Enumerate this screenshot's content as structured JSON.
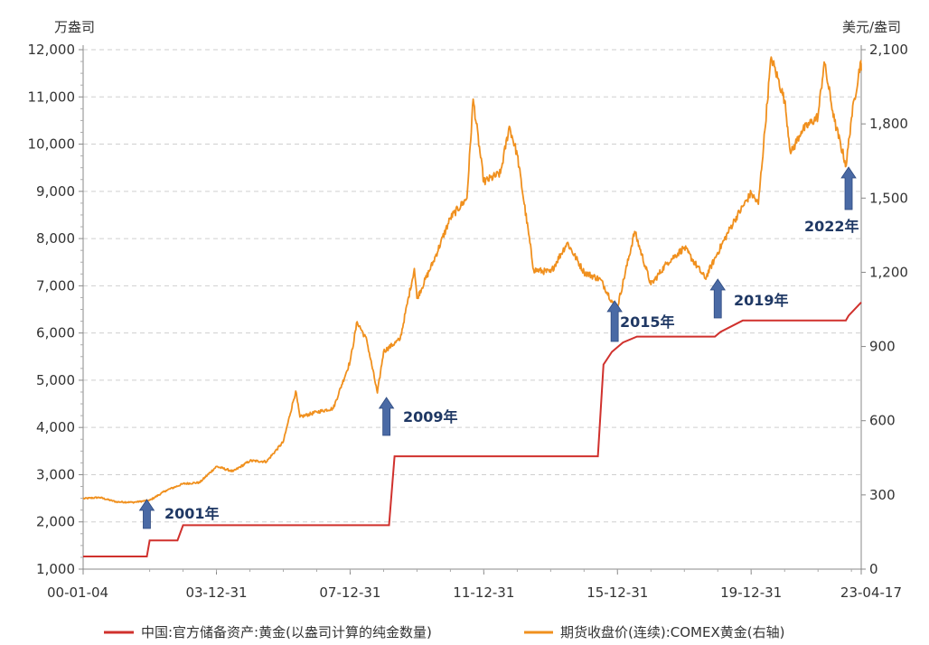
{
  "chart_data": {
    "type": "line",
    "left_axis_unit": "万盎司",
    "right_axis_unit": "美元/盎司",
    "x_tick_labels": [
      "00-01-04",
      "03-12-31",
      "07-12-31",
      "11-12-31",
      "15-12-31",
      "19-12-31",
      "23-04-17"
    ],
    "x_tick_dates": [
      "2000-01-04",
      "2003-12-31",
      "2007-12-31",
      "2011-12-31",
      "2015-12-31",
      "2019-12-31",
      "2023-04-17"
    ],
    "left_ylim": [
      1000,
      12000
    ],
    "left_yticks": [
      1000,
      2000,
      3000,
      4000,
      5000,
      6000,
      7000,
      8000,
      9000,
      10000,
      11000,
      12000
    ],
    "left_ytick_labels": [
      "1,000",
      "2,000",
      "3,000",
      "4,000",
      "5,000",
      "6,000",
      "7,000",
      "8,000",
      "9,000",
      "10,000",
      "11,000",
      "12,000"
    ],
    "right_ylim": [
      0,
      2100
    ],
    "right_yticks": [
      0,
      300,
      600,
      900,
      1200,
      1500,
      1800,
      2100
    ],
    "right_ytick_labels": [
      "0",
      "300",
      "600",
      "900",
      "1,200",
      "1,500",
      "1,800",
      "2,100"
    ],
    "grid": "horizontal dashed",
    "legend_position": "bottom",
    "series": [
      {
        "name": "中国:官方储备资产:黄金(以盎司计算的纯金数量)",
        "axis": "left",
        "color": "#d0312d",
        "shape": "step",
        "points": [
          [
            "2000-01-04",
            1267
          ],
          [
            "2001-11-30",
            1267
          ],
          [
            "2001-12-31",
            1608
          ],
          [
            "2002-10-31",
            1608
          ],
          [
            "2002-12-31",
            1929
          ],
          [
            "2009-02-28",
            1929
          ],
          [
            "2009-04-30",
            3389
          ],
          [
            "2015-05-31",
            3389
          ],
          [
            "2015-07-31",
            5332
          ],
          [
            "2015-10-31",
            5600
          ],
          [
            "2016-02-29",
            5800
          ],
          [
            "2016-07-31",
            5924
          ],
          [
            "2018-11-30",
            5924
          ],
          [
            "2019-01-31",
            6026
          ],
          [
            "2019-09-30",
            6264
          ],
          [
            "2022-10-31",
            6264
          ],
          [
            "2022-11-30",
            6367
          ],
          [
            "2023-04-17",
            6650
          ]
        ]
      },
      {
        "name": "期货收盘价(连续):COMEX黄金(右轴)",
        "axis": "right",
        "color": "#f0901e",
        "points": [
          [
            "2000-01-04",
            285
          ],
          [
            "2000-06-30",
            290
          ],
          [
            "2000-12-31",
            272
          ],
          [
            "2001-06-30",
            270
          ],
          [
            "2001-12-31",
            278
          ],
          [
            "2002-06-30",
            318
          ],
          [
            "2002-12-31",
            345
          ],
          [
            "2003-06-30",
            350
          ],
          [
            "2003-12-31",
            415
          ],
          [
            "2004-06-30",
            395
          ],
          [
            "2004-12-31",
            438
          ],
          [
            "2005-06-30",
            435
          ],
          [
            "2005-12-31",
            515
          ],
          [
            "2006-05-15",
            720
          ],
          [
            "2006-06-30",
            615
          ],
          [
            "2006-12-31",
            635
          ],
          [
            "2007-06-30",
            650
          ],
          [
            "2007-12-31",
            840
          ],
          [
            "2008-03-17",
            1000
          ],
          [
            "2008-06-30",
            925
          ],
          [
            "2008-10-24",
            712
          ],
          [
            "2008-12-31",
            880
          ],
          [
            "2009-06-30",
            930
          ],
          [
            "2009-12-02",
            1215
          ],
          [
            "2009-12-31",
            1095
          ],
          [
            "2010-06-30",
            1245
          ],
          [
            "2010-12-31",
            1420
          ],
          [
            "2011-06-30",
            1500
          ],
          [
            "2011-09-06",
            1900
          ],
          [
            "2011-12-31",
            1565
          ],
          [
            "2012-06-30",
            1600
          ],
          [
            "2012-10-05",
            1790
          ],
          [
            "2012-12-31",
            1675
          ],
          [
            "2013-06-28",
            1210
          ],
          [
            "2013-12-31",
            1200
          ],
          [
            "2014-06-30",
            1320
          ],
          [
            "2014-12-31",
            1200
          ],
          [
            "2015-06-30",
            1170
          ],
          [
            "2015-12-17",
            1050
          ],
          [
            "2015-12-31",
            1060
          ],
          [
            "2016-07-06",
            1365
          ],
          [
            "2016-12-31",
            1150
          ],
          [
            "2017-06-30",
            1240
          ],
          [
            "2017-12-31",
            1300
          ],
          [
            "2018-08-16",
            1175
          ],
          [
            "2018-12-31",
            1280
          ],
          [
            "2019-06-30",
            1410
          ],
          [
            "2019-12-31",
            1520
          ],
          [
            "2020-03-19",
            1475
          ],
          [
            "2020-08-06",
            2070
          ],
          [
            "2020-12-31",
            1895
          ],
          [
            "2021-03-08",
            1680
          ],
          [
            "2021-06-30",
            1770
          ],
          [
            "2021-12-31",
            1830
          ],
          [
            "2022-03-08",
            2050
          ],
          [
            "2022-06-30",
            1810
          ],
          [
            "2022-11-03",
            1630
          ],
          [
            "2022-12-31",
            1825
          ],
          [
            "2023-04-13",
            2055
          ],
          [
            "2023-04-17",
            2015
          ]
        ]
      }
    ],
    "annotations": [
      {
        "label": "2001年",
        "date": "2001-11-30"
      },
      {
        "label": "2009年",
        "date": "2009-01-31"
      },
      {
        "label": "2015年",
        "date": "2015-11-30"
      },
      {
        "label": "2019年",
        "date": "2018-12-31"
      },
      {
        "label": "2022年",
        "date": "2022-11-30"
      }
    ]
  }
}
